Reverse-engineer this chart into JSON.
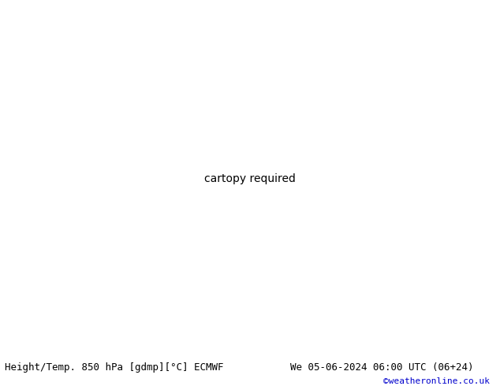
{
  "title_left": "Height/Temp. 850 hPa [gdmp][°C] ECMWF",
  "title_right": "We 05-06-2024 06:00 UTC (06+24)",
  "credit": "©weatheronline.co.uk",
  "land_color": "#c8f0a0",
  "sea_color": "#e8e8e8",
  "border_color": "#aaaaaa",
  "fig_width": 6.34,
  "fig_height": 4.9,
  "dpi": 100,
  "title_fontsize": 9,
  "credit_fontsize": 8,
  "credit_color": "#0000cc",
  "extent": [
    -28,
    50,
    30,
    72
  ],
  "black_lw": 2.2,
  "colored_lw": 1.3
}
